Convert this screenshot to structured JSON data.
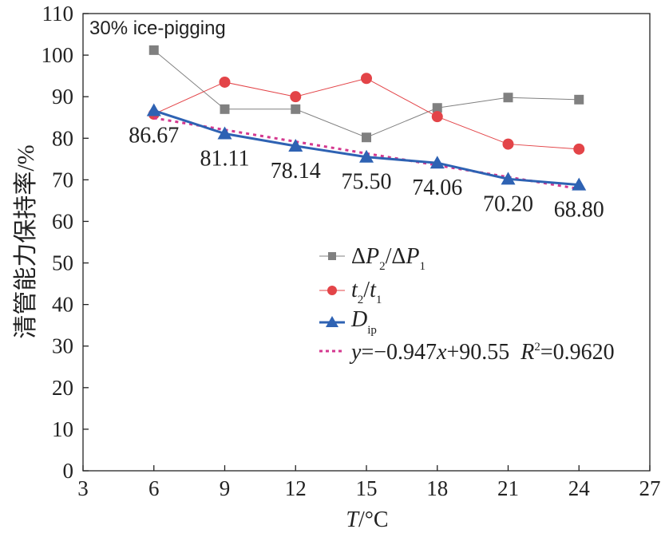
{
  "chart_data": {
    "type": "line",
    "annotation": "30% ice-pigging",
    "xlabel": {
      "var": "T",
      "unit": "/°C"
    },
    "ylabel": "清管能力保持率/%",
    "xlim": [
      3,
      27
    ],
    "ylim": [
      0,
      110
    ],
    "xticks": [
      3,
      6,
      9,
      12,
      15,
      18,
      21,
      24,
      27
    ],
    "yticks": [
      0,
      10,
      20,
      30,
      40,
      50,
      60,
      70,
      80,
      90,
      100,
      110
    ],
    "grid": false,
    "legend_position": "center-right",
    "x": [
      6,
      9,
      12,
      15,
      18,
      21,
      24
    ],
    "series": [
      {
        "name": "ΔP2/ΔP1",
        "legend": {
          "a": "Δ",
          "b": "P",
          "c": "2",
          "d": "/Δ",
          "e": "P",
          "f": "1"
        },
        "color": "#808080",
        "marker": "square",
        "values": [
          101.2,
          87.0,
          87.0,
          80.2,
          87.3,
          89.8,
          89.3
        ]
      },
      {
        "name": "t2/t1",
        "legend": {
          "a": "t",
          "b": "2",
          "c": "/",
          "d": "t",
          "e": "1"
        },
        "color": "#e34448",
        "marker": "circle",
        "values": [
          85.8,
          93.5,
          90.0,
          94.4,
          85.2,
          78.6,
          77.4
        ]
      },
      {
        "name": "Dip",
        "legend": {
          "a": "D",
          "b": "ip"
        },
        "color": "#2e62b3",
        "marker": "triangle",
        "values": [
          86.67,
          81.11,
          78.14,
          75.5,
          74.06,
          70.2,
          68.8
        ],
        "data_labels": [
          "86.67",
          "81.11",
          "78.14",
          "75.50",
          "74.06",
          "70.20",
          "68.80"
        ]
      }
    ],
    "fit": {
      "name": "y=−0.947x+90.55 R2=0.9620",
      "color": "#d4388f",
      "slope": -0.947,
      "intercept": 90.55,
      "x_range": [
        6,
        24
      ],
      "legend": {
        "a": "y",
        "b": "=−0.947",
        "c": "x",
        "d": "+90.55  ",
        "e": "R",
        "f": "2",
        "g": "=0.9620"
      }
    }
  }
}
